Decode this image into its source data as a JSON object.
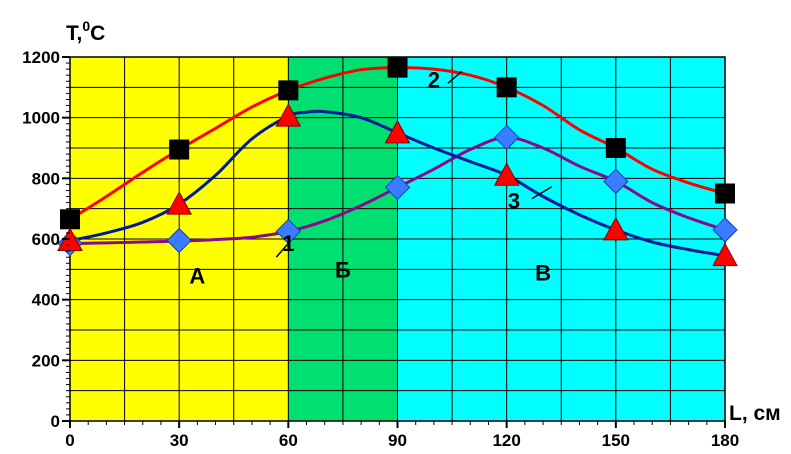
{
  "chart_data": {
    "type": "line",
    "xlabel": "L, см",
    "ylabel": "T,",
    "ylabel_sup": "0",
    "ylabel_unit": "C",
    "xlim": [
      0,
      180
    ],
    "ylim": [
      0,
      1200
    ],
    "x_ticks": [
      0,
      30,
      60,
      90,
      120,
      150,
      180
    ],
    "y_ticks": [
      0,
      200,
      400,
      600,
      800,
      1000,
      1200
    ],
    "x_grid_step": 15,
    "y_grid_step": 100,
    "grid": true,
    "zones": [
      {
        "label": "А",
        "x_from": 0,
        "x_to": 60,
        "color": "#ffff00",
        "label_x": 35,
        "label_y": 480
      },
      {
        "label": "Б",
        "x_from": 60,
        "x_to": 90,
        "color": "#00e070",
        "label_x": 75,
        "label_y": 500
      },
      {
        "label": "В",
        "x_from": 90,
        "x_to": 180,
        "color": "#00ffff",
        "label_x": 130,
        "label_y": 490
      }
    ],
    "series": [
      {
        "name": "1",
        "color": "#8b0a8b",
        "marker": "diamond",
        "marker_color": "#3a7bff",
        "points": [
          [
            0,
            585
          ],
          [
            30,
            595
          ],
          [
            60,
            625
          ],
          [
            90,
            770
          ],
          [
            120,
            935
          ],
          [
            150,
            790
          ],
          [
            180,
            630
          ]
        ],
        "curve": [
          [
            0,
            585
          ],
          [
            10,
            587
          ],
          [
            20,
            590
          ],
          [
            30,
            593
          ],
          [
            40,
            598
          ],
          [
            50,
            606
          ],
          [
            60,
            625
          ],
          [
            70,
            660
          ],
          [
            80,
            710
          ],
          [
            90,
            770
          ],
          [
            100,
            830
          ],
          [
            110,
            895
          ],
          [
            120,
            935
          ],
          [
            130,
            900
          ],
          [
            140,
            840
          ],
          [
            150,
            790
          ],
          [
            160,
            720
          ],
          [
            170,
            670
          ],
          [
            180,
            630
          ]
        ],
        "label_x": 60,
        "label_y": 560
      },
      {
        "name": "2",
        "color": "#ff0000",
        "marker": "square",
        "marker_color": "#000000",
        "points": [
          [
            0,
            665
          ],
          [
            30,
            895
          ],
          [
            60,
            1090
          ],
          [
            90,
            1165
          ],
          [
            120,
            1100
          ],
          [
            150,
            900
          ],
          [
            180,
            750
          ]
        ],
        "curve": [
          [
            0,
            665
          ],
          [
            10,
            740
          ],
          [
            20,
            820
          ],
          [
            30,
            895
          ],
          [
            40,
            965
          ],
          [
            50,
            1035
          ],
          [
            60,
            1090
          ],
          [
            70,
            1130
          ],
          [
            80,
            1158
          ],
          [
            90,
            1165
          ],
          [
            100,
            1160
          ],
          [
            110,
            1140
          ],
          [
            120,
            1100
          ],
          [
            130,
            1040
          ],
          [
            140,
            960
          ],
          [
            150,
            900
          ],
          [
            160,
            830
          ],
          [
            170,
            785
          ],
          [
            180,
            750
          ]
        ],
        "label_x": 100,
        "label_y": 1100
      },
      {
        "name": "3",
        "color": "#001a99",
        "marker": "triangle",
        "marker_color": "#ff0000",
        "points": [
          [
            0,
            595
          ],
          [
            30,
            715
          ],
          [
            60,
            1005
          ],
          [
            90,
            950
          ],
          [
            120,
            810
          ],
          [
            150,
            630
          ],
          [
            180,
            545
          ]
        ],
        "curve": [
          [
            0,
            595
          ],
          [
            10,
            620
          ],
          [
            20,
            655
          ],
          [
            30,
            715
          ],
          [
            40,
            810
          ],
          [
            50,
            930
          ],
          [
            60,
            1005
          ],
          [
            65,
            1018
          ],
          [
            70,
            1020
          ],
          [
            80,
            1000
          ],
          [
            90,
            950
          ],
          [
            100,
            900
          ],
          [
            110,
            855
          ],
          [
            120,
            810
          ],
          [
            130,
            740
          ],
          [
            140,
            680
          ],
          [
            150,
            630
          ],
          [
            160,
            590
          ],
          [
            170,
            565
          ],
          [
            180,
            545
          ]
        ],
        "label_x": 122,
        "label_y": 700
      }
    ]
  }
}
